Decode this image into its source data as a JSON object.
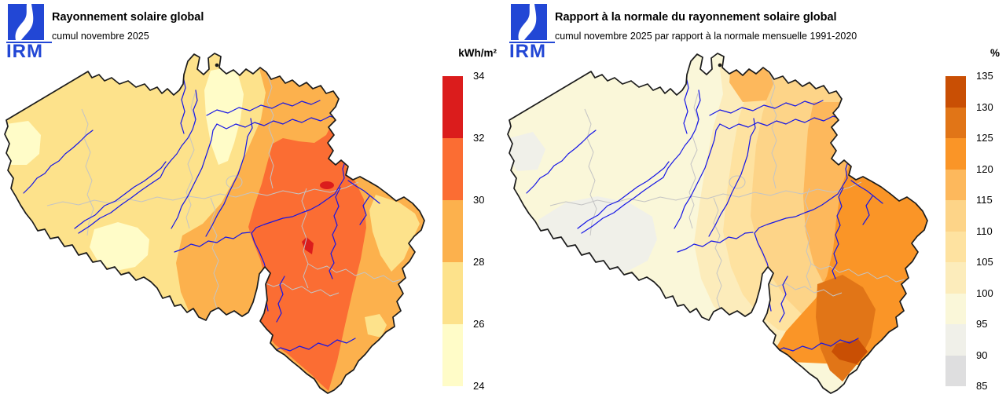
{
  "page": {
    "background": "#ffffff"
  },
  "logo": {
    "text": "IRM",
    "color": "#2247d5"
  },
  "map_style": {
    "country_border_color": "#1b1b1b",
    "province_border_color": "#c4c4c4",
    "river_color": "#1515e6"
  },
  "maps": [
    {
      "title": "Rayonnement solaire global",
      "subtitle": "cumul novembre 2025",
      "unit": "kWh/m²",
      "legend": {
        "ticks": [
          "34",
          "32",
          "30",
          "28",
          "26",
          "24"
        ],
        "colors": [
          "#db1c1c",
          "#fb6d33",
          "#fcb14d",
          "#fde28b",
          "#fffcc8"
        ]
      }
    },
    {
      "title": "Rapport à la normale du rayonnement solaire global",
      "subtitle": "cumul novembre 2025 par rapport à la normale mensuelle 1991-2020",
      "unit": "%",
      "legend": {
        "ticks": [
          "135",
          "130",
          "125",
          "120",
          "115",
          "110",
          "105",
          "100",
          "95",
          "90",
          "85"
        ],
        "colors": [
          "#c94f04",
          "#e17517",
          "#fa9527",
          "#fdb85c",
          "#fdd488",
          "#fee2a0",
          "#fcecbb",
          "#faf7d9",
          "#f0f0e9",
          "#dededf"
        ]
      }
    }
  ]
}
